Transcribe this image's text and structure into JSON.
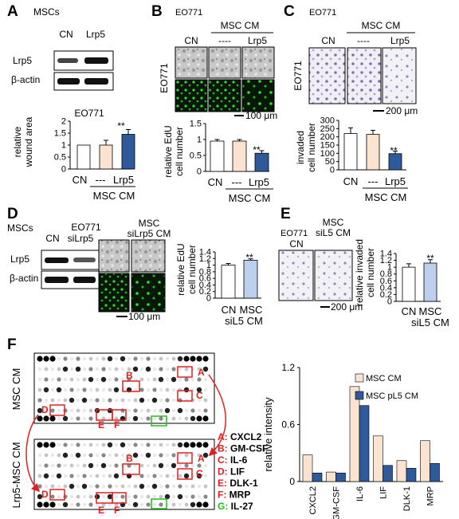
{
  "panels": {
    "A": {
      "letter": "A",
      "cell_title": "MSCs",
      "lanes": [
        "CN",
        "Lrp5"
      ],
      "rows": [
        "Lrp5",
        "β-actin"
      ],
      "chart_title": "EO771",
      "ylabel": [
        "relative",
        "wound area"
      ],
      "ticks": [
        "0",
        "0.5",
        "1",
        "1.5",
        "2"
      ],
      "xlabels": [
        "CN",
        "---",
        "Lrp5"
      ],
      "group_label": "MSC CM",
      "sig": "**"
    },
    "B": {
      "letter": "B",
      "cell_title": "EO771",
      "top_label": "MSC CM",
      "cols": [
        "CN",
        "----",
        "Lrp5"
      ],
      "side_label": "EO771",
      "scale": "100 μm",
      "ylabel": [
        "relative EdU",
        "cell number"
      ],
      "ticks": [
        "0",
        "0.5",
        "1",
        "1.5"
      ],
      "xlabels": [
        "CN",
        "---",
        "Lrp5"
      ],
      "group_label": "MSC CM",
      "sig": "**"
    },
    "C": {
      "letter": "C",
      "cell_title": "EO771",
      "top_label": "MSC CM",
      "cols": [
        "CN",
        "----",
        "Lrp5"
      ],
      "side_label": "EO771",
      "scale": "200 μm",
      "ylabel": [
        "invaded",
        "cell number"
      ],
      "ticks": [
        "0",
        "50",
        "100",
        "150",
        "200",
        "250",
        "300"
      ],
      "xlabels": [
        "CN",
        "---",
        "Lrp5"
      ],
      "group_label": "MSC CM",
      "sig": "**"
    },
    "D": {
      "letter": "D",
      "cell_title": "MSCs",
      "lanes": [
        "CN",
        "siLrp5"
      ],
      "rows": [
        "Lrp5",
        "β-actin"
      ],
      "img_title": "EO771",
      "img_col_cn": "CN",
      "img_col_msc": [
        "MSC",
        "siLrp5 CM"
      ],
      "scale": "100 μm",
      "ylabel": [
        "relative EdU",
        "cell number"
      ],
      "ticks": [
        "0",
        "0.2",
        "0.4",
        "0.6",
        "0.8",
        "1",
        "1.2",
        "1.4"
      ],
      "xlabels": [
        "CN",
        "MSC"
      ],
      "xsub": "siL5 CM",
      "sig": "**"
    },
    "E": {
      "letter": "E",
      "cell_title": "EO771",
      "img_col_cn": "CN",
      "img_col_msc": [
        "MSC",
        "siL5 CM"
      ],
      "scale": "200 μm",
      "ylabel": [
        "relative invaded",
        "cell number"
      ],
      "ticks": [
        "0",
        "0.2",
        "0.4",
        "0.6",
        "0.8",
        "1",
        "1.2",
        "1.4"
      ],
      "xlabels": [
        "CN",
        "MSC"
      ],
      "xsub": "siL5 CM",
      "sig": "**"
    },
    "F": {
      "letter": "F",
      "array_top_label": "MSC CM",
      "array_bottom_label": "Lrp5-MSC CM",
      "spot_letters": [
        "A",
        "B",
        "C",
        "D",
        "E",
        "F"
      ],
      "key": [
        {
          "letter": "A",
          "name": "CXCL2",
          "color": "#e02020"
        },
        {
          "letter": "B",
          "name": "GM-CSF",
          "color": "#e02020"
        },
        {
          "letter": "C",
          "name": "IL-6",
          "color": "#e02020"
        },
        {
          "letter": "D",
          "name": "LIF",
          "color": "#e02020"
        },
        {
          "letter": "E",
          "name": "DLK-1",
          "color": "#e02020"
        },
        {
          "letter": "F",
          "name": "MRP",
          "color": "#e02020"
        },
        {
          "letter": "G",
          "name": "IL-27",
          "color": "#22bb22"
        }
      ]
    }
  },
  "chart_data": [
    {
      "type": "bar",
      "panel": "A",
      "title": "EO771",
      "categories": [
        "CN",
        "---",
        "Lrp5"
      ],
      "values": [
        1.0,
        1.0,
        1.45
      ],
      "errors": [
        0.0,
        0.2,
        0.2
      ],
      "colors": [
        "#ffffff",
        "#fbe3d1",
        "#2e5a9c"
      ],
      "ylabel": "relative wound area",
      "ylim": [
        0,
        2
      ]
    },
    {
      "type": "bar",
      "panel": "B",
      "categories": [
        "CN",
        "---",
        "Lrp5"
      ],
      "values": [
        0.95,
        0.95,
        0.57
      ],
      "errors": [
        0.05,
        0.05,
        0.08
      ],
      "colors": [
        "#ffffff",
        "#fbe3d1",
        "#2e5a9c"
      ],
      "ylabel": "relative EdU cell number",
      "ylim": [
        0,
        1.5
      ]
    },
    {
      "type": "bar",
      "panel": "C",
      "categories": [
        "CN",
        "---",
        "Lrp5"
      ],
      "values": [
        220,
        215,
        98
      ],
      "errors": [
        35,
        25,
        15
      ],
      "colors": [
        "#ffffff",
        "#fbe3d1",
        "#2e5a9c"
      ],
      "ylabel": "invaded cell number",
      "ylim": [
        0,
        300
      ]
    },
    {
      "type": "bar",
      "panel": "D",
      "categories": [
        "CN",
        "MSC siL5 CM"
      ],
      "values": [
        1.0,
        1.15
      ],
      "errors": [
        0.05,
        0.04
      ],
      "colors": [
        "#ffffff",
        "#bcd0ee"
      ],
      "ylabel": "relative EdU cell number",
      "ylim": [
        0,
        1.4
      ]
    },
    {
      "type": "bar",
      "panel": "E",
      "categories": [
        "CN",
        "MSC siL5 CM"
      ],
      "values": [
        1.0,
        1.12
      ],
      "errors": [
        0.1,
        0.1
      ],
      "colors": [
        "#ffffff",
        "#bcd0ee"
      ],
      "ylabel": "relative invaded cell number",
      "ylim": [
        0,
        1.4
      ]
    },
    {
      "type": "bar",
      "panel": "F",
      "categories": [
        "CXCL2",
        "GM-CSF",
        "IL-6",
        "LIF",
        "DLK-1",
        "MRP"
      ],
      "series": [
        {
          "name": "MSC CM",
          "values": [
            0.28,
            0.1,
            1.0,
            0.48,
            0.22,
            0.43
          ],
          "color": "#fbe3d1"
        },
        {
          "name": "MSC pL5 CM",
          "values": [
            0.09,
            0.09,
            0.8,
            0.17,
            0.14,
            0.19
          ],
          "color": "#2e5a9c"
        }
      ],
      "ylabel": "relative intensity",
      "yticks": [
        "0",
        "0.6",
        "1.2"
      ],
      "ylim": [
        0,
        1.2
      ],
      "legend": "top-right"
    }
  ]
}
